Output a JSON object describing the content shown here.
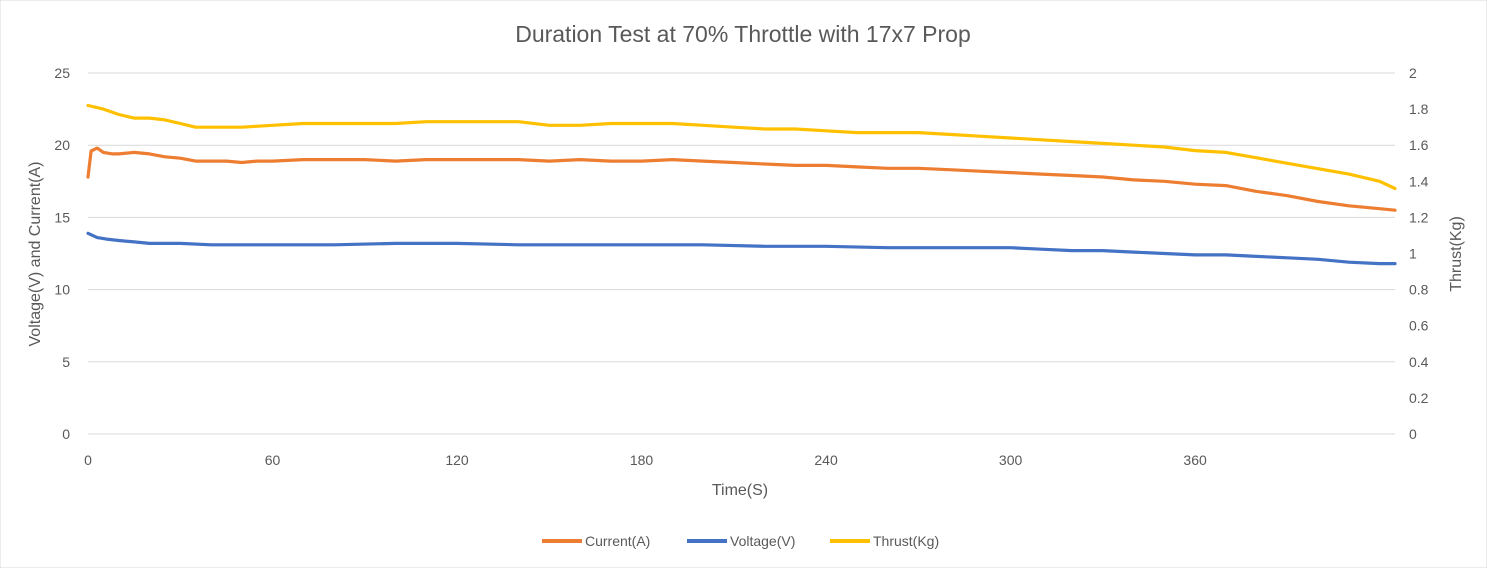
{
  "chart_data": {
    "type": "line",
    "title": "Duration Test at 70% Throttle with 17x7 Prop",
    "xlabel": "Time(S)",
    "ylabel": "Voltage(V) and Current(A)",
    "y2label": "Thrust(Kg)",
    "xlim": [
      0,
      425
    ],
    "ylim": [
      0,
      25
    ],
    "y2lim": [
      0,
      2
    ],
    "x_ticks": [
      "0",
      "60",
      "120",
      "180",
      "240",
      "300",
      "360"
    ],
    "y_ticks": [
      "0",
      "5",
      "10",
      "15",
      "20",
      "25"
    ],
    "y2_ticks": [
      "0",
      "0.2",
      "0.4",
      "0.6",
      "0.8",
      "1",
      "1.2",
      "1.4",
      "1.6",
      "1.8",
      "2"
    ],
    "grid": true,
    "legend_position": "bottom",
    "series": [
      {
        "name": "Current(A)",
        "axis": "left",
        "color": "#ED7D31",
        "x": [
          0,
          1,
          3,
          5,
          8,
          10,
          15,
          20,
          25,
          30,
          35,
          40,
          45,
          50,
          55,
          60,
          70,
          80,
          90,
          100,
          110,
          120,
          130,
          140,
          150,
          160,
          170,
          180,
          190,
          200,
          210,
          220,
          230,
          240,
          250,
          260,
          270,
          280,
          290,
          300,
          310,
          320,
          330,
          340,
          350,
          360,
          370,
          380,
          390,
          400,
          410,
          420,
          425
        ],
        "y": [
          17.8,
          19.6,
          19.8,
          19.5,
          19.4,
          19.4,
          19.5,
          19.4,
          19.2,
          19.1,
          18.9,
          18.9,
          18.9,
          18.8,
          18.9,
          18.9,
          19.0,
          19.0,
          19.0,
          18.9,
          19.0,
          19.0,
          19.0,
          19.0,
          18.9,
          19.0,
          18.9,
          18.9,
          19.0,
          18.9,
          18.8,
          18.7,
          18.6,
          18.6,
          18.5,
          18.4,
          18.4,
          18.3,
          18.2,
          18.1,
          18.0,
          17.9,
          17.8,
          17.6,
          17.5,
          17.3,
          17.2,
          16.8,
          16.5,
          16.1,
          15.8,
          15.6,
          15.5
        ]
      },
      {
        "name": "Voltage(V)",
        "axis": "left",
        "color": "#4472C4",
        "x": [
          0,
          3,
          6,
          10,
          15,
          20,
          30,
          40,
          60,
          80,
          100,
          120,
          140,
          160,
          180,
          200,
          220,
          240,
          260,
          280,
          300,
          310,
          320,
          330,
          340,
          350,
          360,
          370,
          380,
          390,
          400,
          410,
          420,
          425
        ],
        "y": [
          13.9,
          13.6,
          13.5,
          13.4,
          13.3,
          13.2,
          13.2,
          13.1,
          13.1,
          13.1,
          13.2,
          13.2,
          13.1,
          13.1,
          13.1,
          13.1,
          13.0,
          13.0,
          12.9,
          12.9,
          12.9,
          12.8,
          12.7,
          12.7,
          12.6,
          12.5,
          12.4,
          12.4,
          12.3,
          12.2,
          12.1,
          11.9,
          11.8,
          11.8
        ]
      },
      {
        "name": "Thrust(Kg)",
        "axis": "right",
        "color": "#FFC000",
        "x": [
          0,
          5,
          10,
          15,
          20,
          25,
          30,
          35,
          40,
          50,
          60,
          70,
          80,
          90,
          100,
          110,
          120,
          130,
          140,
          150,
          160,
          170,
          180,
          190,
          200,
          210,
          220,
          230,
          240,
          250,
          260,
          270,
          280,
          290,
          300,
          310,
          320,
          330,
          340,
          350,
          360,
          370,
          380,
          390,
          400,
          410,
          420,
          425
        ],
        "y": [
          1.82,
          1.8,
          1.77,
          1.75,
          1.75,
          1.74,
          1.72,
          1.7,
          1.7,
          1.7,
          1.71,
          1.72,
          1.72,
          1.72,
          1.72,
          1.73,
          1.73,
          1.73,
          1.73,
          1.71,
          1.71,
          1.72,
          1.72,
          1.72,
          1.71,
          1.7,
          1.69,
          1.69,
          1.68,
          1.67,
          1.67,
          1.67,
          1.66,
          1.65,
          1.64,
          1.63,
          1.62,
          1.61,
          1.6,
          1.59,
          1.57,
          1.56,
          1.53,
          1.5,
          1.47,
          1.44,
          1.4,
          1.36
        ]
      }
    ]
  }
}
